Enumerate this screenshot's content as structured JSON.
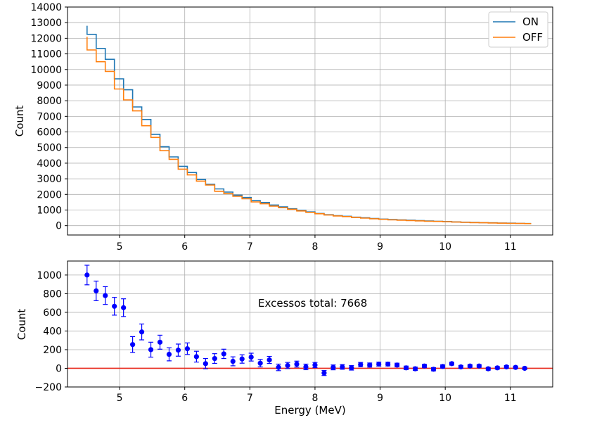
{
  "chart_data": [
    {
      "type": "line",
      "subtype": "step-histogram",
      "title": "",
      "xlabel": "",
      "ylabel": "Count",
      "xlim": [
        4.2,
        11.65
      ],
      "ylim": [
        -600,
        14000
      ],
      "xticks": [
        "5",
        "6",
        "7",
        "8",
        "9",
        "10",
        "11"
      ],
      "yticks": [
        "0",
        "1000",
        "2000",
        "3000",
        "4000",
        "5000",
        "6000",
        "7000",
        "8000",
        "9000",
        "10000",
        "11000",
        "12000",
        "13000",
        "14000"
      ],
      "grid": true,
      "legend": "top-right",
      "x": [
        4.5,
        4.64,
        4.78,
        4.92,
        5.06,
        5.2,
        5.34,
        5.48,
        5.62,
        5.76,
        5.9,
        6.04,
        6.18,
        6.32,
        6.46,
        6.6,
        6.74,
        6.88,
        7.02,
        7.16,
        7.3,
        7.44,
        7.58,
        7.72,
        7.86,
        8.0,
        8.14,
        8.28,
        8.42,
        8.56,
        8.7,
        8.84,
        8.98,
        9.12,
        9.26,
        9.4,
        9.54,
        9.68,
        9.82,
        9.96,
        10.1,
        10.24,
        10.38,
        10.52,
        10.66,
        10.8,
        10.94,
        11.08,
        11.22
      ],
      "bin_edges_end": 11.32,
      "series": [
        {
          "name": "ON",
          "color": "#1f77b4",
          "start_value": 12800,
          "values": [
            12250,
            11350,
            10650,
            9400,
            8700,
            7600,
            6800,
            5850,
            5050,
            4400,
            3800,
            3400,
            2950,
            2650,
            2350,
            2150,
            1950,
            1800,
            1600,
            1480,
            1320,
            1200,
            1080,
            980,
            880,
            780,
            700,
            640,
            600,
            540,
            500,
            460,
            420,
            390,
            370,
            340,
            320,
            300,
            280,
            260,
            240,
            220,
            200,
            190,
            180,
            165,
            155,
            145,
            135
          ]
        },
        {
          "name": "OFF",
          "color": "#ff7f0e",
          "start_value": 12100,
          "values": [
            11250,
            10500,
            9880,
            8750,
            8050,
            7350,
            6400,
            5650,
            4800,
            4250,
            3620,
            3250,
            2850,
            2600,
            2200,
            2050,
            1880,
            1720,
            1520,
            1400,
            1250,
            1150,
            1050,
            940,
            850,
            760,
            680,
            620,
            580,
            520,
            480,
            440,
            405,
            370,
            350,
            325,
            305,
            285,
            268,
            248,
            228,
            210,
            192,
            182,
            172,
            158,
            148,
            138,
            128
          ]
        }
      ]
    },
    {
      "type": "scatter",
      "subtype": "errorbar",
      "title": "",
      "xlabel": "Energy (MeV)",
      "ylabel": "Count",
      "xlim": [
        4.2,
        11.65
      ],
      "ylim": [
        -200,
        1150
      ],
      "xticks": [
        "5",
        "6",
        "7",
        "8",
        "9",
        "10",
        "11"
      ],
      "yticks": [
        "−200",
        "0",
        "200",
        "400",
        "600",
        "800",
        "1000"
      ],
      "grid": true,
      "annotation": "Excessos total: 7668",
      "reference_line": {
        "y": 0,
        "color": "#e8291c"
      },
      "point_color": "#0000ff",
      "x": [
        4.5,
        4.64,
        4.78,
        4.92,
        5.06,
        5.2,
        5.34,
        5.48,
        5.62,
        5.76,
        5.9,
        6.04,
        6.18,
        6.32,
        6.46,
        6.6,
        6.74,
        6.88,
        7.02,
        7.16,
        7.3,
        7.44,
        7.58,
        7.72,
        7.86,
        8.0,
        8.14,
        8.28,
        8.42,
        8.56,
        8.7,
        8.84,
        8.98,
        9.12,
        9.26,
        9.4,
        9.54,
        9.68,
        9.82,
        9.96,
        10.1,
        10.24,
        10.38,
        10.52,
        10.66,
        10.8,
        10.94,
        11.08,
        11.22
      ],
      "values": [
        1000,
        830,
        780,
        665,
        650,
        255,
        390,
        200,
        280,
        150,
        195,
        210,
        125,
        50,
        105,
        155,
        75,
        100,
        120,
        55,
        90,
        10,
        30,
        45,
        15,
        35,
        -50,
        10,
        15,
        5,
        40,
        35,
        45,
        45,
        35,
        5,
        -5,
        25,
        -10,
        20,
        50,
        15,
        25,
        25,
        -5,
        5,
        15,
        10,
        0
      ],
      "errors": [
        105,
        105,
        95,
        95,
        95,
        85,
        85,
        80,
        75,
        70,
        65,
        62,
        58,
        55,
        52,
        50,
        48,
        45,
        42,
        40,
        38,
        35,
        33,
        32,
        30,
        28,
        27,
        26,
        25,
        24,
        23,
        22,
        21,
        20,
        20,
        19,
        18,
        18,
        17,
        17,
        16,
        16,
        15,
        15,
        15,
        14,
        14,
        14,
        13
      ]
    }
  ]
}
